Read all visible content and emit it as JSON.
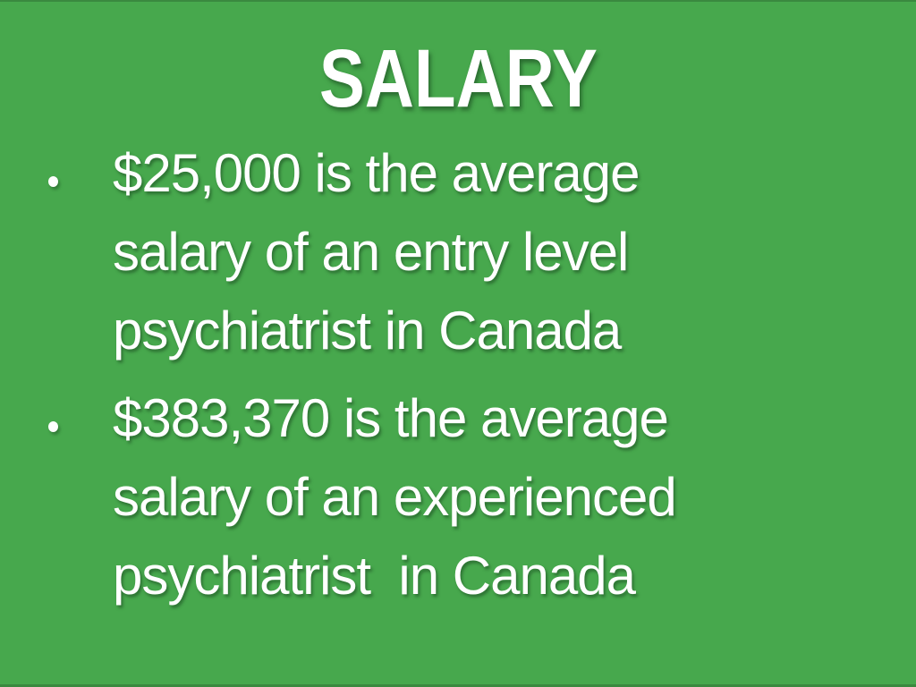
{
  "slide": {
    "title": "SALARY",
    "bullets": [
      {
        "text": "$25,000 is the average salary of an entry level psychiatrist in Canada",
        "lines": [
          "$25,000 is the average",
          "salary of an entry level",
          "psychiatrist in Canada"
        ]
      },
      {
        "text": "$383,370 is the average salary of an experienced psychiatrist  in Canada",
        "lines": [
          "$383,370 is the average",
          "salary of an experienced",
          "psychiatrist  in Canada"
        ]
      }
    ],
    "colors": {
      "background": "#47a84d",
      "text": "#ffffff"
    }
  }
}
